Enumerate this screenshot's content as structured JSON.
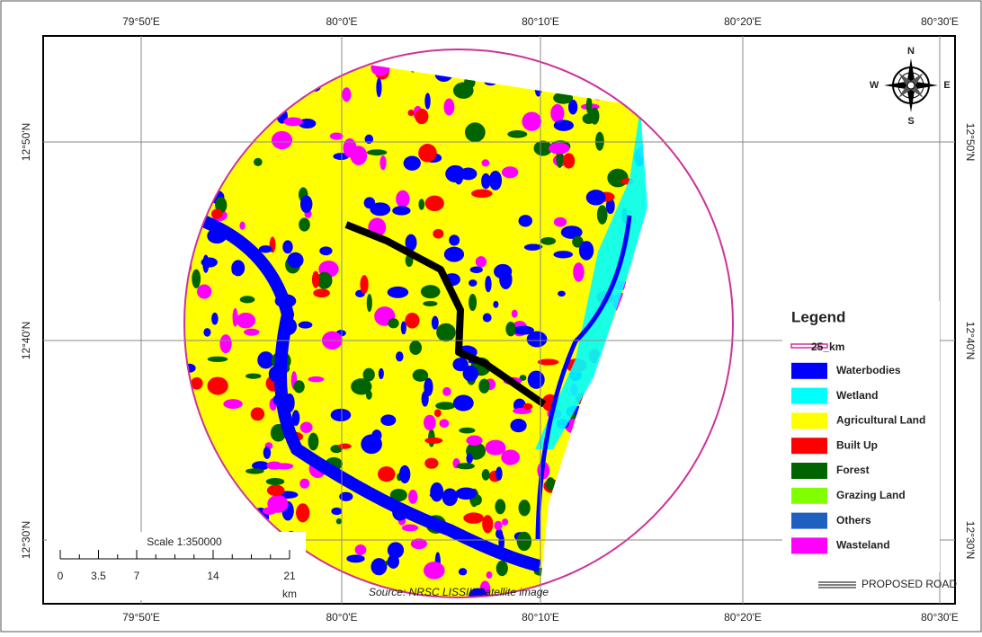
{
  "map": {
    "longitudes": [
      "79°50'E",
      "80°0'E",
      "80°10'E",
      "80°20'E",
      "80°30'E"
    ],
    "latitudes": [
      "12°50'N",
      "12°40'N",
      "12°30'N"
    ],
    "compass": {
      "n": "N",
      "s": "S",
      "e": "E",
      "w": "W"
    },
    "legend": {
      "title": "Legend",
      "items": [
        {
          "label": "25_km",
          "color": "#cc3399"
        },
        {
          "label": "Waterbodies",
          "color": "#0000ff"
        },
        {
          "label": "Wetland",
          "color": "#00ffff"
        },
        {
          "label": "Agricultural Land",
          "color": "#ffff00"
        },
        {
          "label": "Built Up",
          "color": "#ff0000"
        },
        {
          "label": "Forest",
          "color": "#006400"
        },
        {
          "label": "Grazing Land",
          "color": "#80ff00"
        },
        {
          "label": "Others",
          "color": "#1f5fbf"
        },
        {
          "label": "Wasteland",
          "color": "#ff00ff"
        }
      ]
    },
    "scale": {
      "title": "Scale 1:350000",
      "ticks": [
        0,
        3.5,
        7,
        14,
        21
      ],
      "unit": "km"
    },
    "source": "Source: NRSC LISSIII Satellite image",
    "road_label": "PROPOSED ROAD"
  }
}
